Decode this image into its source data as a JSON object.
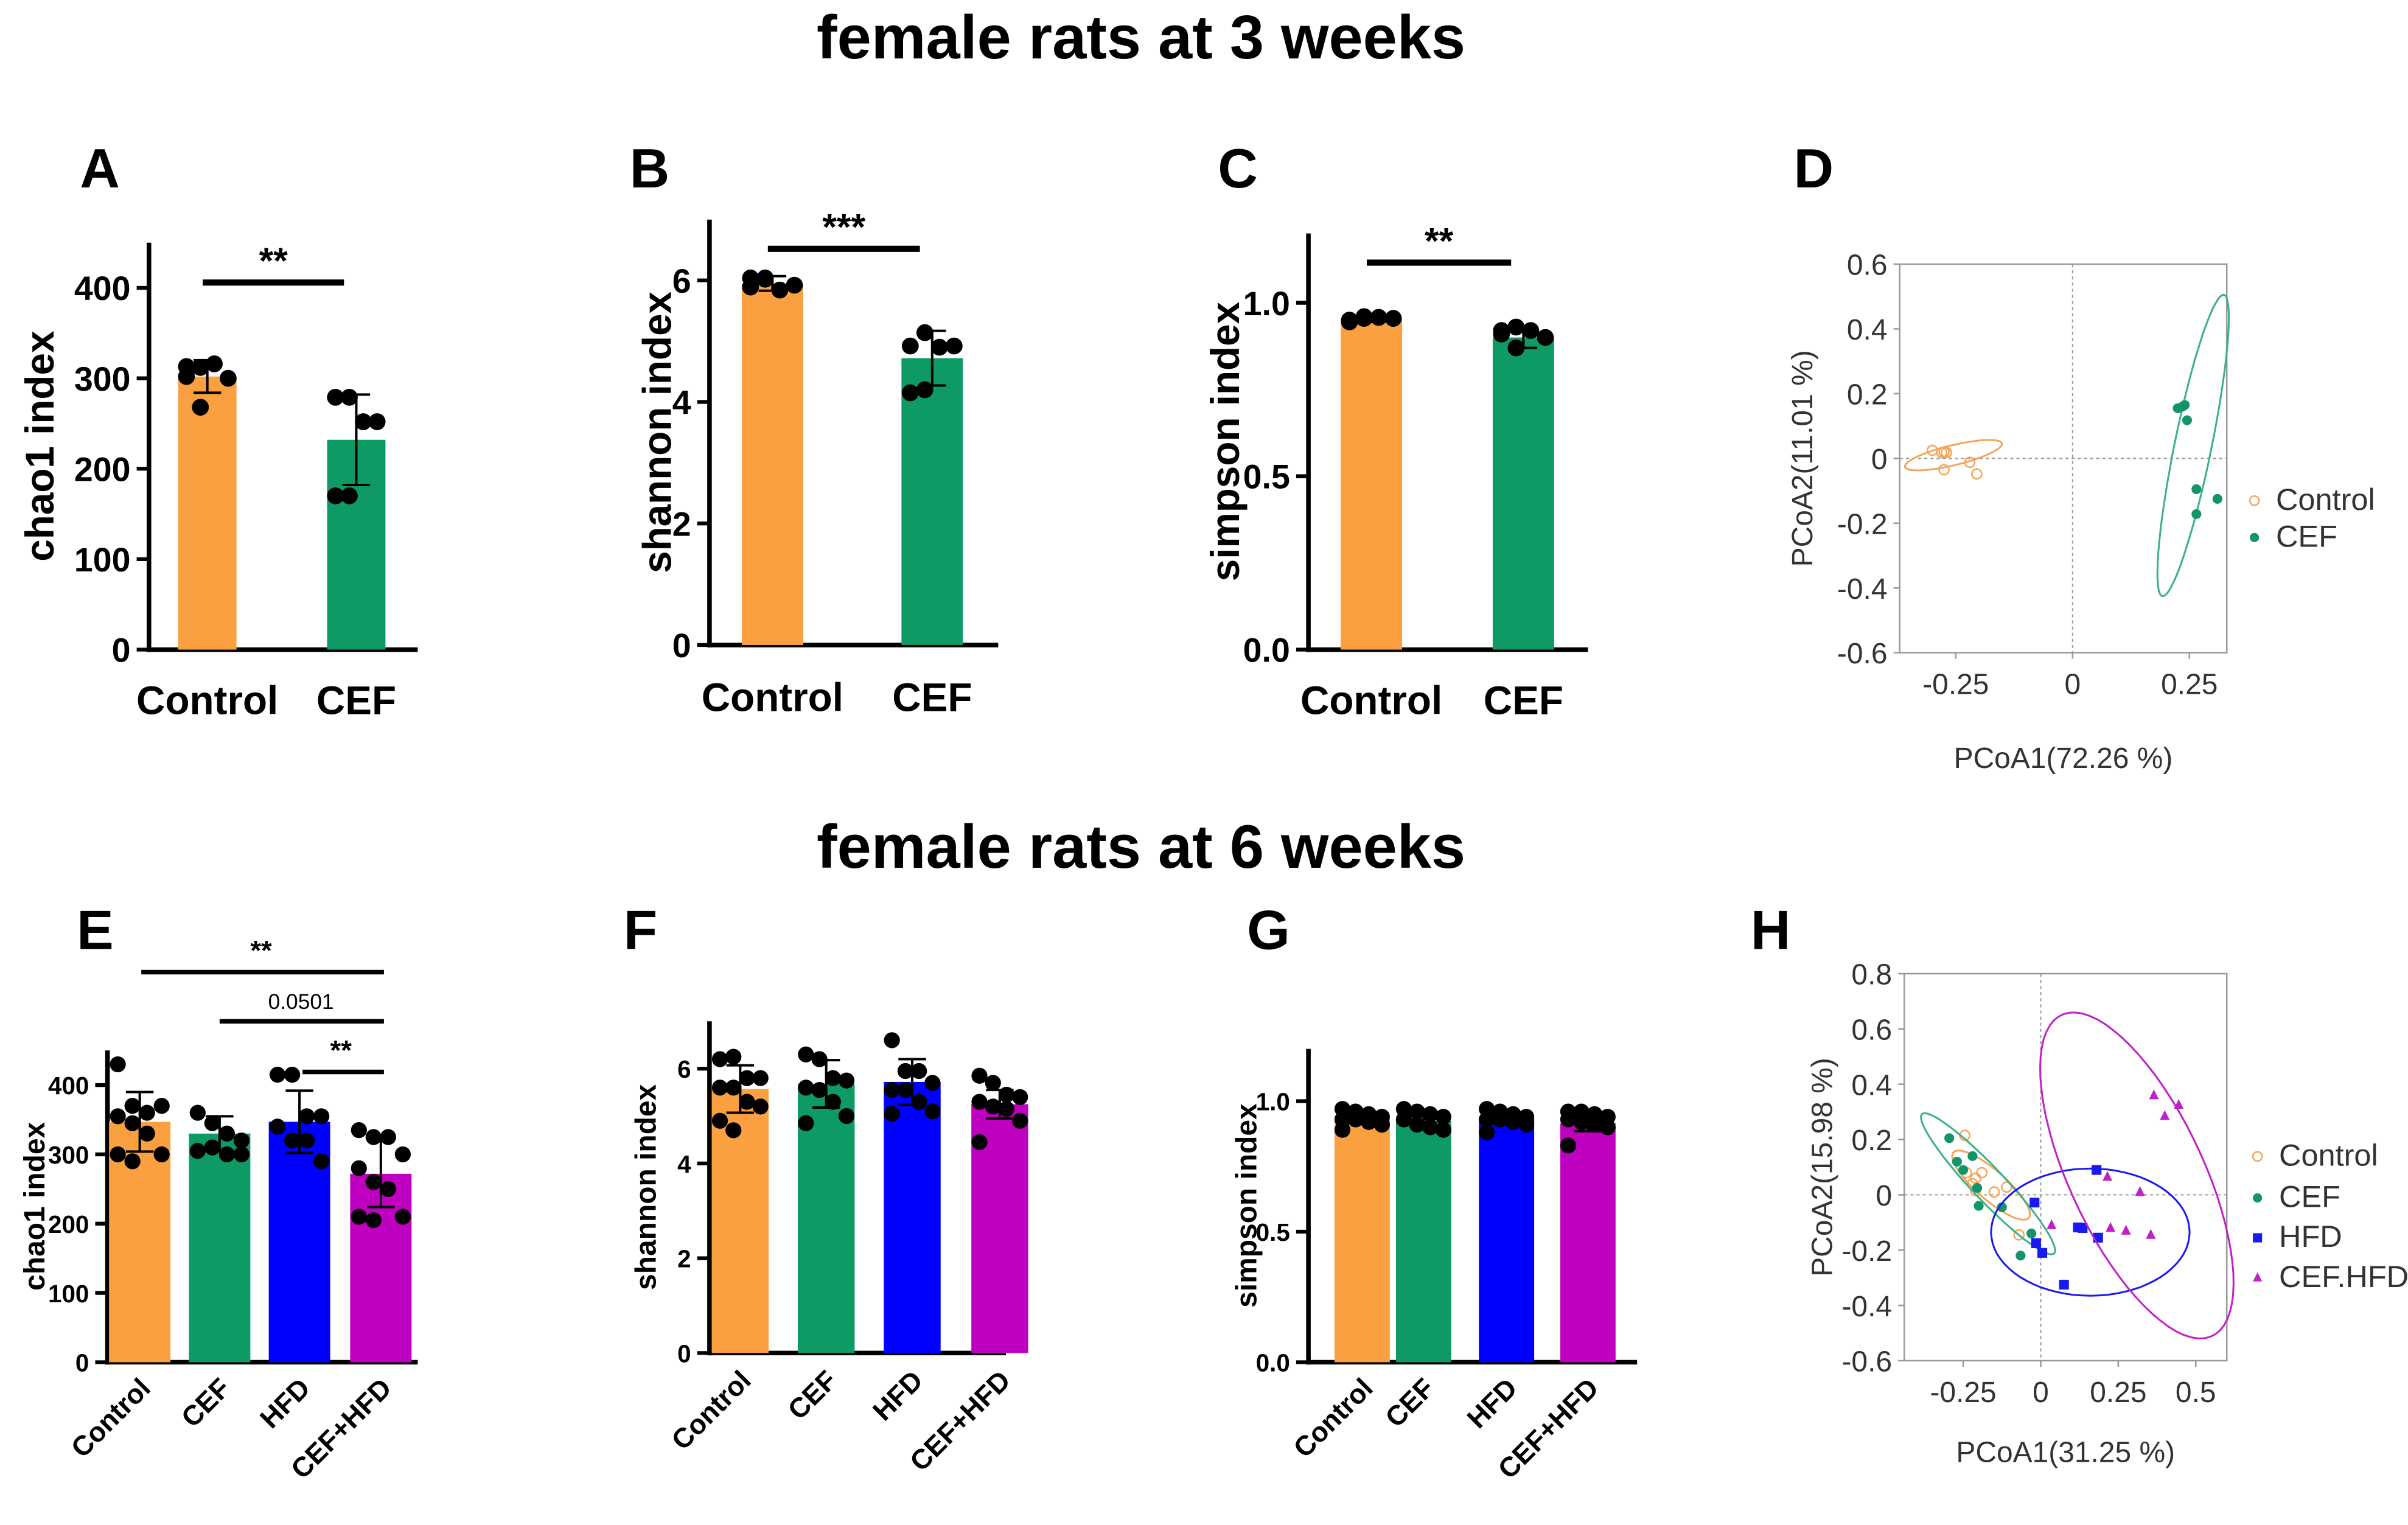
{
  "titles": {
    "week3": "female rats at 3 weeks",
    "week6": "female rats at 6 weeks"
  },
  "colors": {
    "Control": "#FBA040",
    "CEF": "#0E9A64",
    "HFD": "#0000FF",
    "CEF+HFD": "#C000C0",
    "pcoa_control": "#F5A55A",
    "pcoa_cef": "#12956A",
    "pcoa_cef_ellipse": "#3BB08A",
    "pcoa_hfd": "#1A1AF0",
    "pcoa_cefhfd": "#C020C8"
  },
  "chart_data": [
    {
      "panel": "A",
      "type": "bar",
      "ylabel": "chao1 index",
      "categories": [
        "Control",
        "CEF"
      ],
      "values": [
        302,
        232
      ],
      "sd": [
        18,
        50
      ],
      "points": [
        [
          313,
          312,
          316,
          300,
          302,
          268
        ],
        [
          279,
          279,
          252,
          252,
          170,
          170
        ]
      ],
      "yticks": [
        0,
        100,
        200,
        300,
        400
      ],
      "ylim": [
        0,
        450
      ],
      "significance": [
        {
          "from": 0,
          "to": 1,
          "label": "**"
        }
      ]
    },
    {
      "panel": "B",
      "type": "bar",
      "ylabel": "shannon index",
      "categories": [
        "Control",
        "CEF"
      ],
      "values": [
        5.95,
        4.72
      ],
      "sd": [
        0.12,
        0.45
      ],
      "points": [
        [
          6.04,
          6.02,
          5.84,
          5.92,
          5.89,
          6.04
        ],
        [
          4.92,
          5.14,
          4.9,
          4.92,
          4.15,
          4.2
        ]
      ],
      "yticks": [
        0,
        2,
        4,
        6
      ],
      "ylim": [
        0,
        7
      ],
      "significance": [
        {
          "from": 0,
          "to": 1,
          "label": "***"
        }
      ]
    },
    {
      "panel": "C",
      "type": "bar",
      "ylabel": "simpson index",
      "categories": [
        "Control",
        "CEF"
      ],
      "values": [
        0.955,
        0.9
      ],
      "sd": [
        0.01,
        0.03
      ],
      "points": [
        [
          0.95,
          0.96,
          0.958,
          0.955,
          0.945,
          0.955
        ],
        [
          0.92,
          0.93,
          0.92,
          0.9,
          0.91,
          0.87
        ]
      ],
      "yticks": [
        0.0,
        0.5,
        1.0
      ],
      "yticklabels": [
        "0.0",
        "0.5",
        "1.0"
      ],
      "ylim": [
        0,
        1.2
      ],
      "significance": [
        {
          "from": 0,
          "to": 1,
          "label": "**"
        }
      ]
    },
    {
      "panel": "D",
      "type": "scatter",
      "xlabel": "PCoA1(72.26 %)",
      "ylabel": "PCoA2(11.01 %)",
      "xlim": [
        -0.37,
        0.33
      ],
      "ylim": [
        -0.6,
        0.6
      ],
      "xticks": [
        -0.25,
        0,
        0.25
      ],
      "xticklabels": [
        "-0.25",
        "0",
        "0.25"
      ],
      "yticks": [
        -0.6,
        -0.4,
        -0.2,
        0,
        0.2,
        0.4,
        0.6
      ],
      "yticklabels": [
        "-0.6",
        "-0.4",
        "-0.2",
        "0",
        "0.2",
        "0.4",
        "0.6"
      ],
      "legend_position": "right",
      "series": [
        {
          "name": "Control",
          "marker": "open-circle",
          "x": [
            -0.3,
            -0.28,
            -0.275,
            -0.27,
            -0.275,
            -0.22,
            -0.205
          ],
          "y": [
            0.025,
            0.018,
            0.02,
            0.018,
            -0.035,
            -0.012,
            -0.048
          ],
          "ellipse": {
            "cx": -0.255,
            "cy": 0.01,
            "rx": 0.11,
            "ry": 0.03,
            "angle_deg": 20
          }
        },
        {
          "name": "CEF",
          "marker": "filled-circle",
          "x": [
            0.225,
            0.235,
            0.24,
            0.245,
            0.265,
            0.31,
            0.265
          ],
          "y": [
            0.155,
            0.16,
            0.165,
            0.118,
            -0.095,
            -0.125,
            -0.172
          ],
          "ellipse": {
            "cx": 0.258,
            "cy": 0.04,
            "rx": 0.04,
            "ry": 0.47,
            "angle_deg": -8
          }
        }
      ]
    },
    {
      "panel": "E",
      "type": "bar",
      "ylabel": "chao1 index",
      "categories": [
        "Control",
        "CEF",
        "HFD",
        "CEF+HFD"
      ],
      "values": [
        347,
        330,
        347,
        272
      ],
      "sd": [
        43,
        25,
        45,
        48
      ],
      "points": [
        [
          430,
          370,
          360,
          370,
          355,
          345,
          330,
          300,
          300,
          290
        ],
        [
          360,
          345,
          330,
          320,
          305,
          310,
          300,
          300
        ],
        [
          415,
          415,
          355,
          355,
          340,
          320,
          320,
          290
        ],
        [
          335,
          325,
          325,
          300,
          280,
          260,
          250,
          210,
          210,
          205
        ]
      ],
      "yticks": [
        0,
        100,
        200,
        300,
        400
      ],
      "ylim": [
        0,
        450
      ],
      "significance": [
        {
          "from": 0,
          "to": 3,
          "label": "**"
        },
        {
          "from": 1,
          "to": 3,
          "label": "0.0501"
        },
        {
          "from": 2,
          "to": 3,
          "label": "**"
        }
      ]
    },
    {
      "panel": "F",
      "type": "bar",
      "ylabel": "shannon index",
      "categories": [
        "Control",
        "CEF",
        "HFD",
        "CEF+HFD"
      ],
      "values": [
        5.57,
        5.68,
        5.72,
        5.25
      ],
      "sd": [
        0.5,
        0.5,
        0.48,
        0.3
      ],
      "points": [
        [
          6.2,
          6.25,
          5.8,
          5.8,
          5.6,
          5.6,
          5.3,
          5.2,
          4.9,
          4.7
        ],
        [
          6.3,
          6.2,
          5.8,
          5.75,
          5.6,
          5.55,
          5.3,
          5.0,
          4.85
        ],
        [
          6.6,
          5.95,
          5.95,
          5.7,
          5.55,
          5.55,
          5.3,
          5.1,
          5.05
        ],
        [
          5.85,
          5.7,
          5.45,
          5.4,
          5.3,
          5.2,
          5.15,
          4.9,
          4.45
        ]
      ],
      "yticks": [
        0,
        2,
        4,
        6
      ],
      "ylim": [
        0,
        7
      ]
    },
    {
      "panel": "G",
      "type": "bar",
      "ylabel": "simpson index",
      "categories": [
        "Control",
        "CEF",
        "HFD",
        "CEF+HFD"
      ],
      "values": [
        0.935,
        0.925,
        0.935,
        0.915
      ],
      "sd": [
        0.02,
        0.02,
        0.02,
        0.03
      ],
      "points": [
        [
          0.97,
          0.96,
          0.95,
          0.94,
          0.93,
          0.93,
          0.92,
          0.91,
          0.89
        ],
        [
          0.97,
          0.96,
          0.95,
          0.94,
          0.93,
          0.91,
          0.9,
          0.89
        ],
        [
          0.97,
          0.96,
          0.95,
          0.94,
          0.93,
          0.93,
          0.92,
          0.91,
          0.88
        ],
        [
          0.96,
          0.96,
          0.95,
          0.94,
          0.93,
          0.92,
          0.91,
          0.9,
          0.83
        ]
      ],
      "yticks": [
        0.0,
        0.5,
        1.0
      ],
      "yticklabels": [
        "0.0",
        "0.5",
        "1.0"
      ],
      "ylim": [
        0,
        1.2
      ]
    },
    {
      "panel": "H",
      "type": "scatter",
      "xlabel": "PCoA1(31.25 %)",
      "ylabel": "PCoA2(15.98 %)",
      "xlim": [
        -0.44,
        0.6
      ],
      "ylim": [
        -0.6,
        0.8
      ],
      "xticks": [
        -0.25,
        0,
        0.25,
        0.5
      ],
      "xticklabels": [
        "-0.25",
        "0",
        "0.25",
        "0.5"
      ],
      "yticks": [
        -0.6,
        -0.4,
        -0.2,
        0,
        0.2,
        0.4,
        0.6,
        0.8
      ],
      "yticklabels": [
        "-0.6",
        "-0.4",
        "-0.2",
        "0",
        "0.2",
        "0.4",
        "0.6",
        "0.8"
      ],
      "legend_position": "right",
      "series": [
        {
          "name": "Control",
          "marker": "open-circle",
          "x": [
            -0.245,
            -0.24,
            -0.21,
            -0.19,
            -0.22,
            -0.21,
            -0.15,
            -0.11,
            -0.07
          ],
          "y": [
            0.215,
            0.08,
            0.06,
            0.08,
            0.04,
            0.015,
            0.01,
            0.028,
            -0.145
          ],
          "ellipse": {
            "cx": -0.16,
            "cy": 0.035,
            "rx": 0.17,
            "ry": 0.05,
            "angle_deg": -45
          }
        },
        {
          "name": "CEF",
          "marker": "filled-circle",
          "x": [
            -0.295,
            -0.27,
            -0.25,
            -0.22,
            -0.205,
            -0.2,
            -0.125,
            -0.03,
            -0.065
          ],
          "y": [
            0.205,
            0.12,
            0.09,
            0.14,
            0.025,
            -0.04,
            -0.045,
            -0.14,
            -0.22
          ],
          "ellipse": {
            "cx": -0.17,
            "cy": 0.04,
            "rx": 0.33,
            "ry": 0.055,
            "angle_deg": -50
          }
        },
        {
          "name": "HFD",
          "marker": "square",
          "x": [
            -0.02,
            -0.015,
            0.005,
            0.075,
            0.12,
            0.135,
            0.18,
            0.185
          ],
          "y": [
            -0.028,
            -0.175,
            -0.21,
            -0.325,
            -0.118,
            -0.12,
            0.09,
            -0.155
          ],
          "ellipse": {
            "cx": 0.16,
            "cy": -0.135,
            "rx": 0.32,
            "ry": 0.23,
            "angle_deg": 0
          }
        },
        {
          "name": "CEF.HFD",
          "marker": "triangle",
          "x": [
            0.035,
            0.215,
            0.225,
            0.275,
            0.32,
            0.355,
            0.365,
            0.4,
            0.445
          ],
          "y": [
            -0.11,
            0.065,
            -0.12,
            -0.13,
            0.01,
            -0.145,
            0.36,
            0.285,
            0.325
          ],
          "ellipse": {
            "cx": 0.31,
            "cy": 0.07,
            "rx": 0.63,
            "ry": 0.22,
            "angle_deg": -68
          }
        }
      ]
    }
  ]
}
